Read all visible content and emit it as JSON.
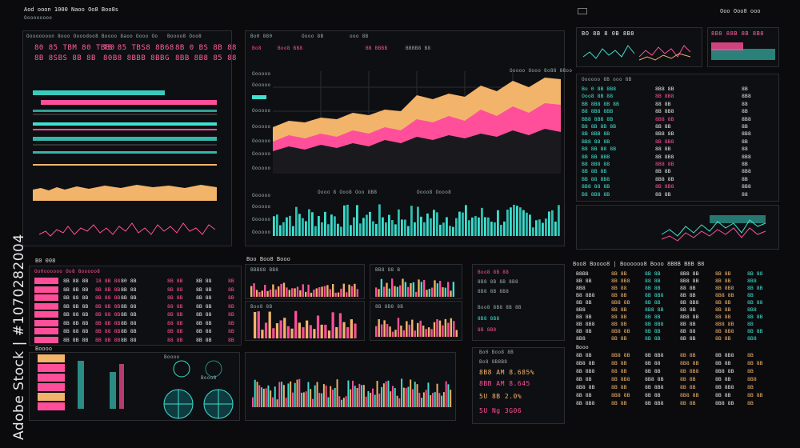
{
  "colors": {
    "accent_cyan": "#3fe0d0",
    "accent_pink": "#ff4f9a",
    "accent_orange": "#f2b46a",
    "bg": "#0b0b0e"
  },
  "top_bar": {
    "left_text": "Aod ooon 1000 Naoo   Oo8 Boo8s",
    "left_sub": "Ooooooooo",
    "right_text": "Ooo Ooo8   ooo"
  },
  "left_top": {
    "header": "Oooooooon 8ooo Oooodoo8 Boooo 8aoo Oooo Oo",
    "header2": "Boooo8 Ooo8",
    "kpis": [
      {
        "value": "80 85 TBM 80 TB80"
      },
      {
        "value": "TB 85 TBS8 8B68"
      },
      {
        "value": "8B 0 BS 8B 88"
      }
    ],
    "kpis2": [
      {
        "value": "8B 8SBS 8B 8B"
      },
      {
        "value": "80B8 8BBB 8BBG"
      },
      {
        "value": "8BB 8B8 85 88"
      }
    ],
    "row_labels": [
      "Oooo 80",
      "Oooo 8B",
      "Oooo 8B",
      "Oooo 88"
    ]
  },
  "center_top": {
    "tabs": [
      "Bo0 880",
      "Oooo 8B",
      "ooo 8B",
      "Booooooo8 oooo 88B 8B 8B8   Oo8 8B8B8   Oo008 8BBB8   8B88"
    ],
    "btn_labels": [
      "Bo8",
      "Boo8 BB8",
      "BB BBBB",
      "BBBB8 B8"
    ],
    "chart_title": "Ooooo Oooo 8o88 88oo",
    "y_labels": [
      "Oooooo",
      "Oooooo",
      "Oooooo",
      "Oooooo",
      "Oooooo",
      "Oooooo",
      "Oooooo",
      "Oooooo",
      "Oooooo",
      "Oooooo",
      "Oooooo"
    ],
    "bottom_title": "Oooo 8 Ooo8 Ooo 8B8",
    "bottom_title2": "Oooo8 Oooo8"
  },
  "right_top": {
    "mini_a": "BO 8B 8 0B 8B8",
    "mini_b": "8B8 88B 8B 8B8",
    "list_title": "Oooooo 8B   ooo 8B",
    "col_a": [
      "Bo 0 8B 8B8",
      "Ooo8 8B 88",
      "BB 8B8 8B 8B",
      "B8 8B8 8BB",
      "BB8 8B8 8B",
      "B8 8B 8B 8B",
      "8B 8BB 8B",
      "BB8 88 8B",
      "B8 8B 88 8B",
      "8B 8B 8BB",
      "B8 8B8 88",
      "8B 8B 8B",
      "BB 88 8B8",
      "8B8 88 8B",
      "B8 8B8 8B"
    ],
    "col_b": [
      "8B8 8B",
      "8B 8B8",
      "88 8B",
      "8B 8B8",
      "8B8 8B",
      "8B 8B",
      "8B8 8B",
      "8B 8B8",
      "88 8B",
      "8B 8B8",
      "8B8 8B",
      "8B 8B",
      "8B8 8B",
      "8B 8B8",
      "88 8B"
    ],
    "col_c": [
      "8B",
      "8B8",
      "88",
      "8B",
      "8B8",
      "8B",
      "8B8",
      "8B",
      "88",
      "8B8",
      "8B",
      "8B8",
      "8B",
      "8B8",
      "88"
    ]
  },
  "left_mid": {
    "title": "B0 008",
    "table_header": "Oo0oooooo Oo8 8ooooo8",
    "rows": [
      [
        "8B 88 8B",
        "18 8B 88",
        "80 8B",
        "8B 8B",
        "8B 88",
        "8B"
      ],
      [
        "8B 8B 8B",
        "8B 8B 8B",
        "8B 88",
        "8B 88",
        "8B 8B",
        "8B"
      ],
      [
        "8B 88 8B",
        "8B 88 8B",
        "8B 8B",
        "8B 8B",
        "8B 88",
        "8B"
      ],
      [
        "8B 8B 8B",
        "8B 8B 8B",
        "8B 88",
        "88 8B",
        "8B 8B",
        "8B"
      ],
      [
        "8B 88 8B",
        "8B 88 8B",
        "8B 8B",
        "8B 8B",
        "8B 88",
        "8B"
      ],
      [
        "8B 8B 8B",
        "8B 8B 8B",
        "8B 88",
        "88 8B",
        "8B 8B",
        "8B"
      ],
      [
        "8B 88 8B",
        "8B 88 8B",
        "8B 8B",
        "8B 8B",
        "8B 88",
        "8B"
      ],
      [
        "8B 8B 8B",
        "8B 8B 8B",
        "8B 88",
        "88 8B",
        "8B 8B",
        "8B"
      ]
    ]
  },
  "center_mid": {
    "title": "Boo Boo8 Booo",
    "chart_labels": [
      "BBB88 BB8",
      "BB8 88 B",
      "Boo8 8B",
      "8B 8B8 8B"
    ],
    "bottom_labels": [
      "Bo 8BB",
      "B8 B8B8",
      "8B 8BB",
      "BB 8B8"
    ]
  },
  "right_mid": {
    "header": "Boo8 Boooo8  |  Boooooo8 Booo 8B8B B8B B8",
    "rows": [
      [
        "B8B8",
        "8B 8B",
        "8B 8B",
        "8B8 8B",
        "8B 8B",
        "8B 88"
      ],
      [
        "8B 8B",
        "8B 8B8",
        "88 8B",
        "8B8 8B",
        "8B 8B",
        "8B8"
      ],
      [
        "8B8",
        "8B 88",
        "8B 8B",
        "88 8B",
        "8B 8B8",
        "8B 8B"
      ],
      [
        "B8 8B8",
        "8B 8B",
        "8B 8B8",
        "8B 8B",
        "8B8 8B",
        "8B"
      ],
      [
        "8B 8B",
        "8B8 8B",
        "8B 8B",
        "8B 8B8",
        "8B 8B",
        "8B 88"
      ],
      [
        "8B8",
        "8B 8B",
        "8B8 8B",
        "8B 8B",
        "8B 8B",
        "8B8"
      ],
      [
        "B8 8B",
        "88 8B",
        "8B 8B",
        "8B8 8B",
        "88 8B",
        "8B 8B"
      ],
      [
        "8B 8B8",
        "8B 8B",
        "8B 8B8",
        "8B 8B",
        "8B8 8B",
        "8B"
      ],
      [
        "8B 8B",
        "8B8 8B",
        "8B 8B",
        "8B 88",
        "8B 8B8",
        "8B 8B"
      ],
      [
        "8B8",
        "8B 8B",
        "8B 8B",
        "8B 8B",
        "8B 8B",
        "8B8"
      ]
    ],
    "bottom_rows": [
      [
        "Booo",
        "",
        "",
        "",
        "",
        ""
      ],
      [
        "8B 8B",
        "8B8 8B",
        "8B 8B8",
        "8B 8B",
        "8B 8B8",
        "8B"
      ],
      [
        "8B8 8B",
        "8B 8B",
        "8B 88",
        "8B8 8B",
        "8B 8B",
        "8B 8B"
      ],
      [
        "8B 8B8",
        "88 8B",
        "8B 8B",
        "8B 8B8",
        "8B8 8B",
        "8B"
      ],
      [
        "8B 8B",
        "8B 8B8",
        "8B8 8B",
        "8B 8B",
        "8B 8B",
        "8B8"
      ],
      [
        "8B8 8B",
        "8B 8B",
        "8B 8B8",
        "8B 8B",
        "8B 8B8",
        "8B"
      ],
      [
        "8B 8B",
        "8B8 8B",
        "8B 8B",
        "8B8 8B",
        "8B 8B",
        "8B 8B"
      ],
      [
        "8B 8B8",
        "8B 8B",
        "8B 8B8",
        "8B 8B",
        "8B8 8B",
        "8B"
      ]
    ]
  },
  "bottom_left": {
    "title": "Boooo",
    "gauge_a": "Boooo",
    "gauge_b": "Booo8"
  },
  "bottom_center": {
    "kpis": [
      "Bo0 Boo8 8B",
      "Bo8 8B8B8",
      "Bo8 8B8B8"
    ],
    "values": [
      "8B8 AM 8.685%",
      "8BB AM 8.645",
      "5U 8B 2.0%",
      "5U Ng 3G06"
    ]
  },
  "watermark": {
    "text": "Adobe Stock | #1070282004"
  }
}
